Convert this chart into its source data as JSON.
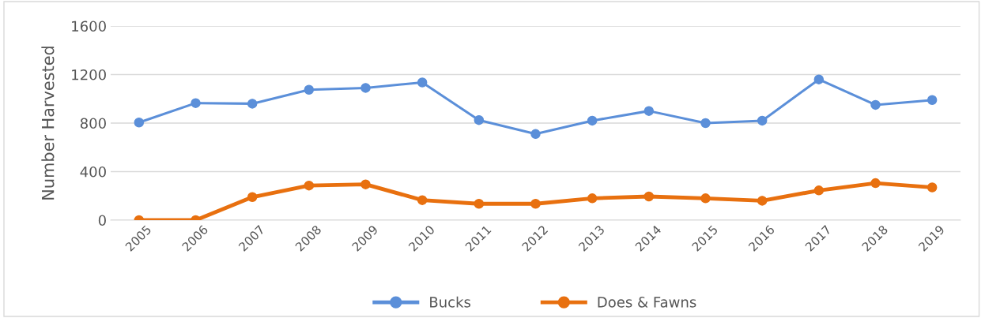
{
  "chart_data": {
    "type": "line",
    "ylabel": "Number Harvested",
    "categories": [
      "2005",
      "2006",
      "2007",
      "2008",
      "2009",
      "2010",
      "2011",
      "2012",
      "2013",
      "2014",
      "2015",
      "2016",
      "2017",
      "2018",
      "2019"
    ],
    "series": [
      {
        "name": "Bucks",
        "color": "#5b8fd9",
        "values": [
          805,
          965,
          960,
          1075,
          1090,
          1135,
          825,
          710,
          820,
          900,
          800,
          820,
          1160,
          950,
          990
        ]
      },
      {
        "name": "Does & Fawns",
        "color": "#e8700f",
        "values": [
          0,
          0,
          190,
          285,
          295,
          165,
          135,
          135,
          180,
          195,
          180,
          160,
          245,
          305,
          270
        ]
      }
    ],
    "ylim": [
      0,
      1600
    ],
    "yticks": [
      0,
      400,
      800,
      1200,
      1600
    ],
    "grid": "y",
    "legend": "bottom",
    "marker": "circle",
    "line_style": "solid"
  }
}
